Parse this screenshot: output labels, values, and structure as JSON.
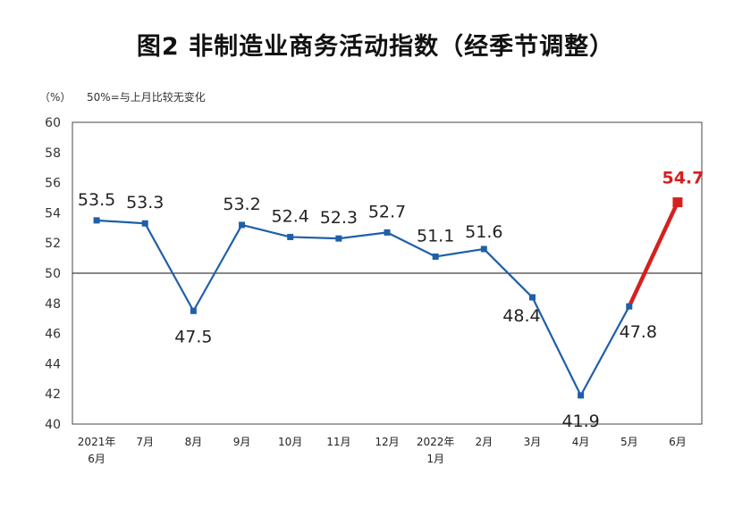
{
  "chart_data": {
    "type": "line",
    "title": "图2 非制造业商务活动指数（经季节调整）",
    "unit": "（%）",
    "note": "50%=与上月比较无变化",
    "ylim": [
      40,
      60
    ],
    "yticks": [
      "40",
      "42",
      "44",
      "46",
      "48",
      "50",
      "52",
      "54",
      "56",
      "58",
      "60"
    ],
    "reference_line": 50,
    "categories": [
      [
        "2021年",
        "6月"
      ],
      [
        "7月"
      ],
      [
        "8月"
      ],
      [
        "9月"
      ],
      [
        "10月"
      ],
      [
        "11月"
      ],
      [
        "12月"
      ],
      [
        "2022年",
        "1月"
      ],
      [
        "2月"
      ],
      [
        "3月"
      ],
      [
        "4月"
      ],
      [
        "5月"
      ],
      [
        "6月"
      ]
    ],
    "series": [
      {
        "color": "#1f5fa8",
        "values": [
          53.5,
          53.3,
          47.5,
          53.2,
          52.4,
          52.3,
          52.7,
          51.1,
          51.6,
          48.4,
          41.9,
          47.8,
          null
        ]
      }
    ],
    "highlight": {
      "color": "#d62020",
      "from_index": 11,
      "to_index": 12,
      "value": 54.7,
      "label": "54.7"
    },
    "labels": [
      "53.5",
      "53.3",
      "47.5",
      "53.2",
      "52.4",
      "52.3",
      "52.7",
      "51.1",
      "51.6",
      "48.4",
      "41.9",
      "47.8",
      "54.7"
    ],
    "grid": false
  }
}
